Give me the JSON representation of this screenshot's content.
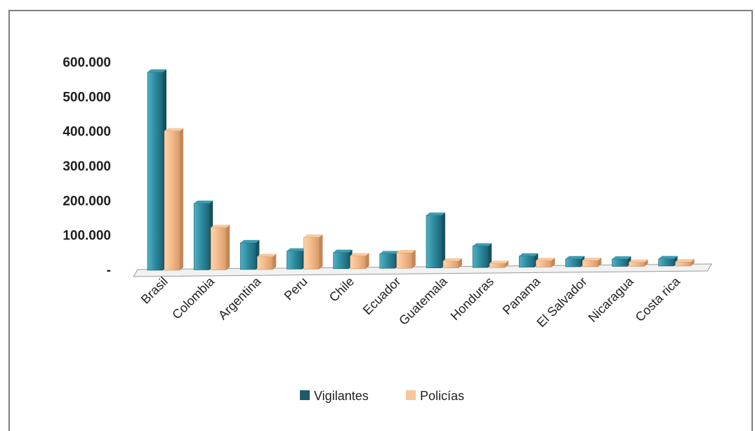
{
  "chart_data": {
    "type": "bar",
    "title": "",
    "xlabel": "",
    "ylabel": "",
    "ylim": [
      0,
      600000
    ],
    "y_ticks": [
      {
        "value": 0,
        "label": "-"
      },
      {
        "value": 100000,
        "label": "100.000"
      },
      {
        "value": 200000,
        "label": "200.000"
      },
      {
        "value": 300000,
        "label": "300.000"
      },
      {
        "value": 400000,
        "label": "400.000"
      },
      {
        "value": 500000,
        "label": "500.000"
      },
      {
        "value": 600000,
        "label": "600.000"
      }
    ],
    "categories": [
      "Brasil",
      "Colombia",
      "Argentina",
      "Peru",
      "Chile",
      "Ecuador",
      "Guatemala",
      "Honduras",
      "Panama",
      "El Salvador",
      "Nicaragua",
      "Costa rica"
    ],
    "series": [
      {
        "name": "Vigilantes",
        "color": "#2e8a9e",
        "values": [
          570000,
          190000,
          75000,
          50000,
          45000,
          40000,
          150000,
          60000,
          30000,
          21000,
          19000,
          19000
        ]
      },
      {
        "name": "Policías",
        "color": "#f2b98a",
        "values": [
          400000,
          120000,
          35000,
          90000,
          35000,
          43000,
          18000,
          10000,
          17000,
          16000,
          10000,
          10000
        ]
      }
    ],
    "grid": false,
    "three_d": true,
    "legend_position": "bottom"
  }
}
